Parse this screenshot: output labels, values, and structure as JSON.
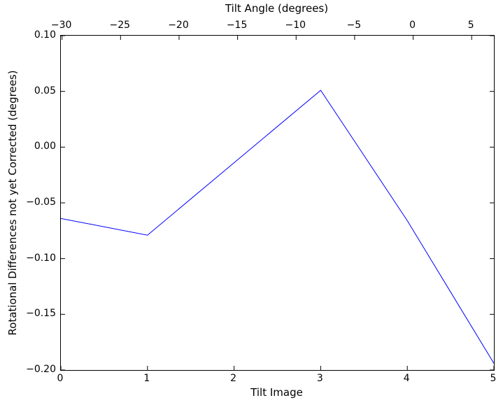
{
  "figure": {
    "background": "#ffffff",
    "box_color": "#000000",
    "text_color": "#000000"
  },
  "chart_data": {
    "type": "line",
    "title": "Tilt Angle (degrees)",
    "xlabel": "Tilt Image",
    "ylabel": "Rotational Differences not yet Corrected (degrees)",
    "x": [
      0,
      1,
      2,
      3,
      4,
      5
    ],
    "y": [
      -0.064,
      -0.079,
      -0.014,
      0.051,
      -0.066,
      -0.194
    ],
    "line_color": "#0000ff",
    "line_width": 1,
    "grid": false,
    "legend": null,
    "xlim": [
      0,
      5
    ],
    "ylim": [
      -0.2,
      0.1
    ],
    "x_ticks": {
      "values": [
        0,
        1,
        2,
        3,
        4,
        5
      ],
      "labels": [
        "0",
        "1",
        "2",
        "3",
        "4",
        "5"
      ]
    },
    "y_ticks": {
      "values": [
        0.1,
        0.05,
        0.0,
        -0.05,
        -0.1,
        -0.15,
        -0.2
      ],
      "labels": [
        "0.10",
        "0.05",
        "0.00",
        "−0.05",
        "−0.10",
        "−0.15",
        "−0.20"
      ]
    },
    "top_axis": {
      "label": "Tilt Angle (degrees)",
      "lim": [
        -30.1,
        6.9
      ],
      "ticks": {
        "values": [
          -30,
          -25,
          -20,
          -15,
          -10,
          -5,
          0,
          5
        ],
        "labels": [
          "−30",
          "−25",
          "−20",
          "−15",
          "−10",
          "−5",
          "0",
          "5"
        ]
      }
    }
  }
}
